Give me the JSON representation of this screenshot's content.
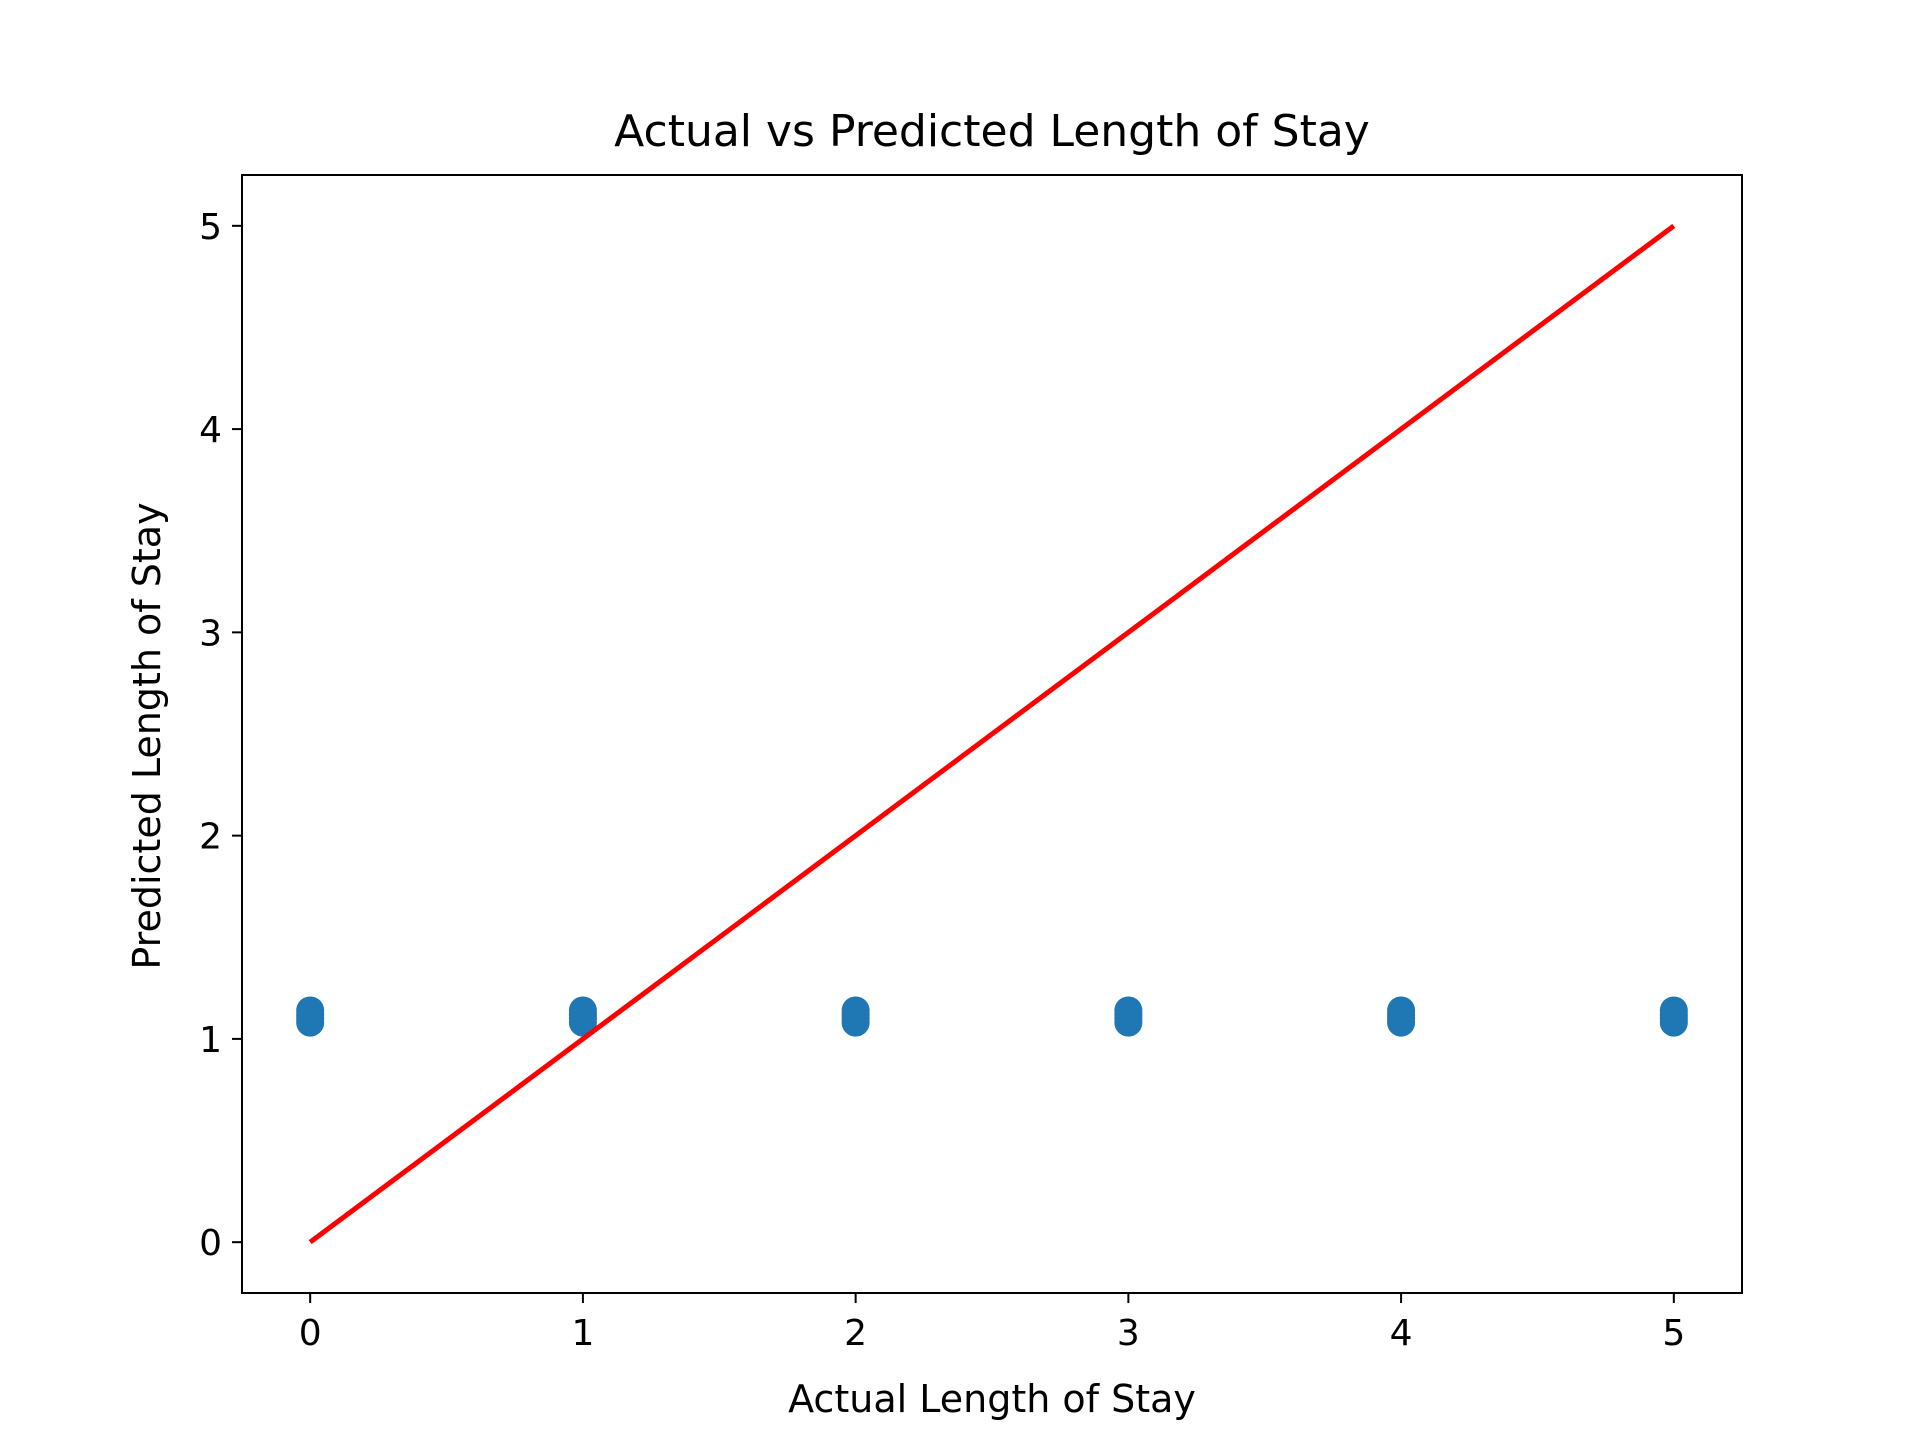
{
  "chart_data": {
    "type": "scatter",
    "title": "Actual vs Predicted Length of Stay",
    "xlabel": "Actual Length of Stay",
    "ylabel": "Predicted Length of Stay",
    "xlim": [
      -0.25,
      5.25
    ],
    "ylim": [
      -0.25,
      5.25
    ],
    "xticks": [
      0,
      1,
      2,
      3,
      4,
      5
    ],
    "yticks": [
      0,
      1,
      2,
      3,
      4,
      5
    ],
    "grid": false,
    "legend": "none",
    "series": [
      {
        "kind": "scatter",
        "color": "#1f77b4",
        "points": [
          {
            "x": 0,
            "y": 1.08
          },
          {
            "x": 0,
            "y": 1.1
          },
          {
            "x": 0,
            "y": 1.12
          },
          {
            "x": 0,
            "y": 1.14
          },
          {
            "x": 1,
            "y": 1.08
          },
          {
            "x": 1,
            "y": 1.1
          },
          {
            "x": 1,
            "y": 1.12
          },
          {
            "x": 1,
            "y": 1.14
          },
          {
            "x": 2,
            "y": 1.08
          },
          {
            "x": 2,
            "y": 1.1
          },
          {
            "x": 2,
            "y": 1.12
          },
          {
            "x": 2,
            "y": 1.14
          },
          {
            "x": 3,
            "y": 1.08
          },
          {
            "x": 3,
            "y": 1.1
          },
          {
            "x": 3,
            "y": 1.12
          },
          {
            "x": 3,
            "y": 1.14
          },
          {
            "x": 4,
            "y": 1.08
          },
          {
            "x": 4,
            "y": 1.1
          },
          {
            "x": 4,
            "y": 1.12
          },
          {
            "x": 4,
            "y": 1.14
          },
          {
            "x": 5,
            "y": 1.08
          },
          {
            "x": 5,
            "y": 1.1
          },
          {
            "x": 5,
            "y": 1.12
          },
          {
            "x": 5,
            "y": 1.14
          }
        ]
      },
      {
        "kind": "line",
        "color": "#ff0000",
        "x": [
          0,
          5
        ],
        "y": [
          0,
          5
        ]
      }
    ]
  }
}
